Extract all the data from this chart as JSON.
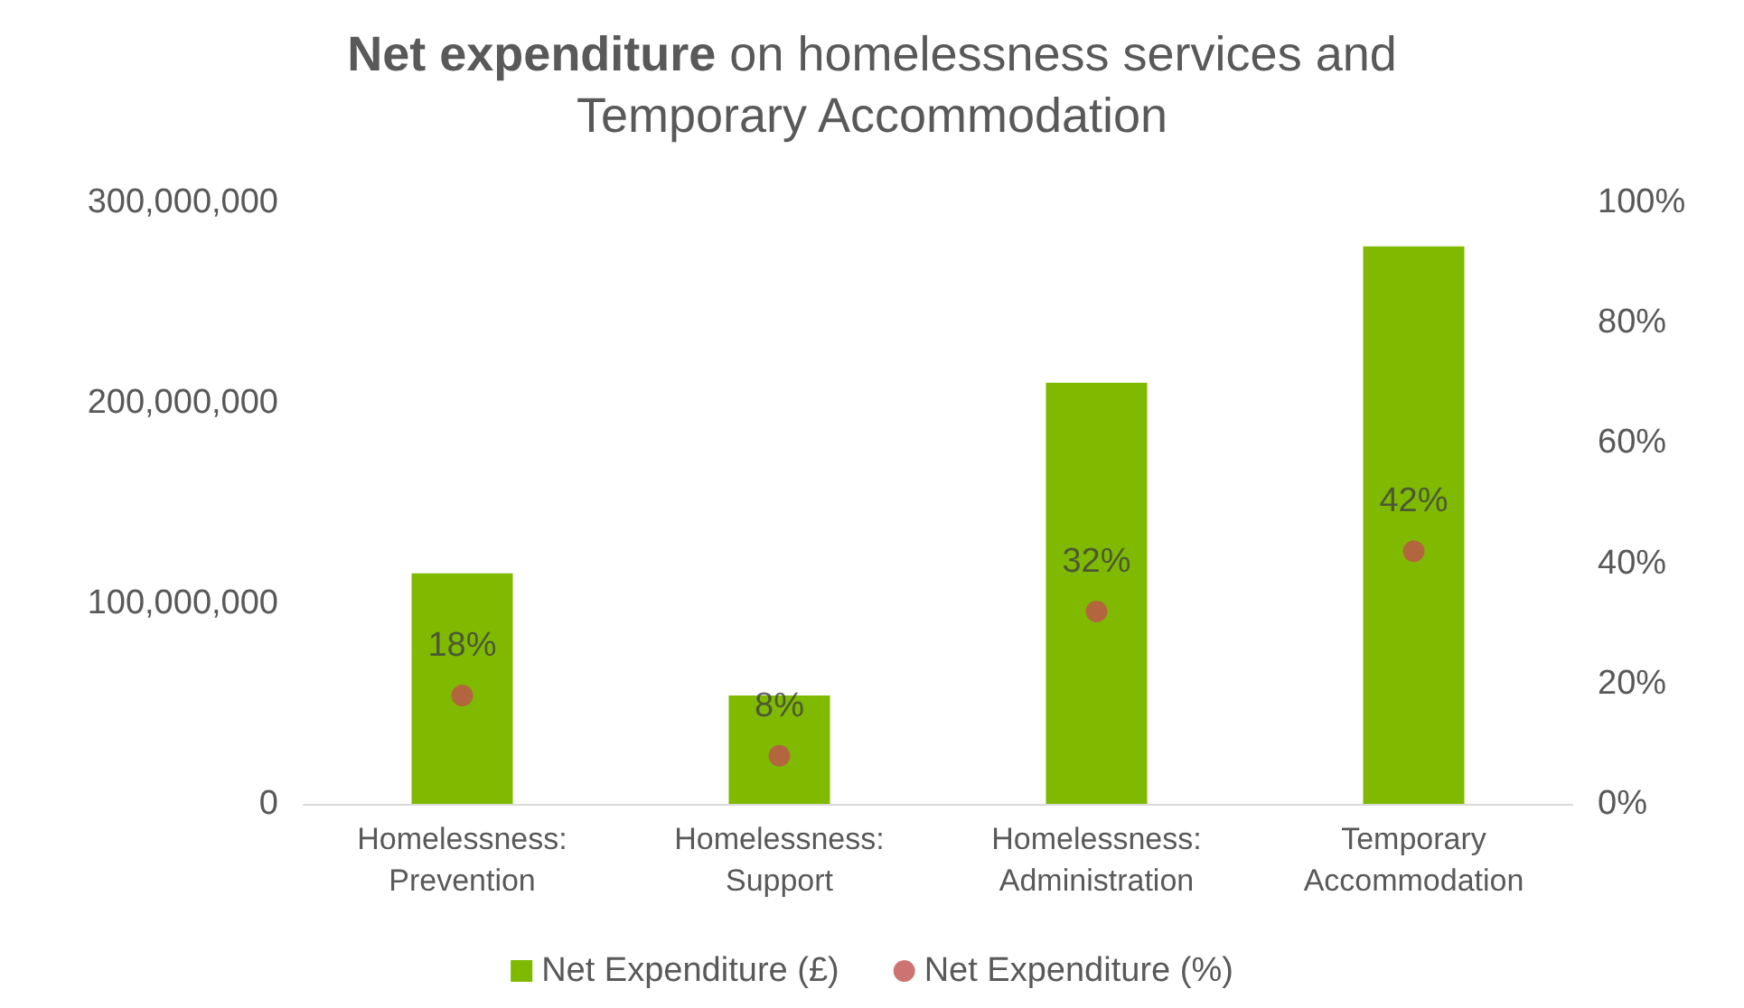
{
  "chart_data": {
    "type": "bar",
    "title": "Net expenditure on homelessness services and Temporary Accommodation",
    "categories": [
      "Homelessness: Prevention",
      "Homelessness: Support",
      "Homelessness: Administration",
      "Temporary Accommodation"
    ],
    "series": [
      {
        "name": "Net Expenditure (£)",
        "color": "#7fba00",
        "values": [
          115000000,
          54000000,
          210000000,
          278000000
        ]
      },
      {
        "name": "Net Expenditure (%)",
        "type": "scatter",
        "axis": "y2",
        "color": "#c0504d",
        "values": [
          18,
          8,
          32,
          42
        ],
        "value_labels": [
          "18%",
          "8%",
          "32%",
          "42%"
        ]
      }
    ],
    "ylim": [
      0,
      300000000
    ],
    "yticks": [
      {
        "value": 0,
        "label": "0"
      },
      {
        "value": 100000000,
        "label": "100,000,000"
      },
      {
        "value": 200000000,
        "label": "200,000,000"
      },
      {
        "value": 300000000,
        "label": "300,000,000"
      }
    ],
    "y2lim": [
      0,
      100
    ],
    "y2ticks": [
      {
        "value": 0,
        "label": "0%"
      },
      {
        "value": 20,
        "label": "20%"
      },
      {
        "value": 40,
        "label": "40%"
      },
      {
        "value": 60,
        "label": "60%"
      },
      {
        "value": 80,
        "label": "80%"
      },
      {
        "value": 100,
        "label": "100%"
      }
    ],
    "legend": "bottom",
    "grid": false,
    "marker": "circle"
  }
}
